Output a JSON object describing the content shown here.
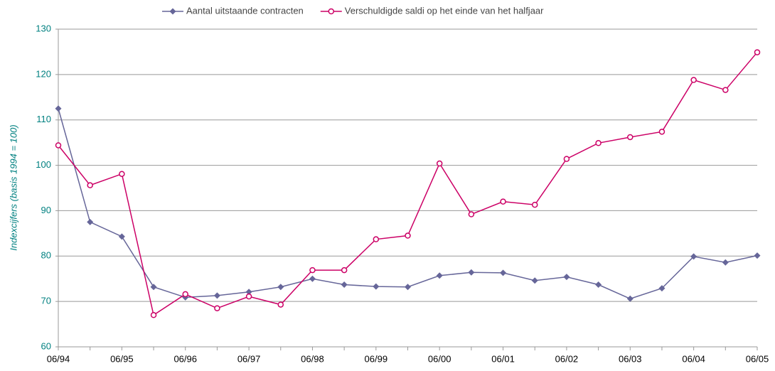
{
  "chart_data": {
    "type": "line",
    "y_label": "Indexcijfers (basis 1994 = 100)",
    "categories": [
      "06/94",
      null,
      "06/95",
      null,
      "06/96",
      null,
      "06/97",
      null,
      "06/98",
      null,
      "06/99",
      null,
      "06/00",
      null,
      "06/01",
      null,
      "06/02",
      null,
      "06/03",
      null,
      "06/04",
      null,
      "06/05"
    ],
    "series": [
      {
        "name": "Aantal uitstaande contracten",
        "color": "#666699",
        "marker": "diamond",
        "values": [
          112.5,
          87.5,
          84.3,
          73.2,
          70.9,
          71.3,
          72.1,
          73.2,
          75.0,
          73.7,
          73.3,
          73.2,
          75.7,
          76.4,
          76.3,
          74.6,
          75.4,
          73.7,
          70.6,
          72.9,
          79.9,
          78.6,
          80.1
        ]
      },
      {
        "name": "Verschuldigde saldi op het einde van het halfjaar",
        "color": "#cc0066",
        "marker": "circle",
        "values": [
          104.4,
          95.6,
          98.1,
          67.0,
          71.6,
          68.5,
          71.1,
          69.3,
          76.9,
          76.9,
          83.7,
          84.5,
          100.4,
          89.2,
          92.0,
          91.3,
          101.4,
          104.9,
          106.2,
          107.4,
          118.8,
          116.6,
          124.9
        ]
      }
    ],
    "ylim": [
      60,
      130
    ],
    "yticks": [
      60,
      70,
      80,
      90,
      100,
      110,
      120,
      130
    ],
    "grid": true,
    "legend": "top"
  }
}
